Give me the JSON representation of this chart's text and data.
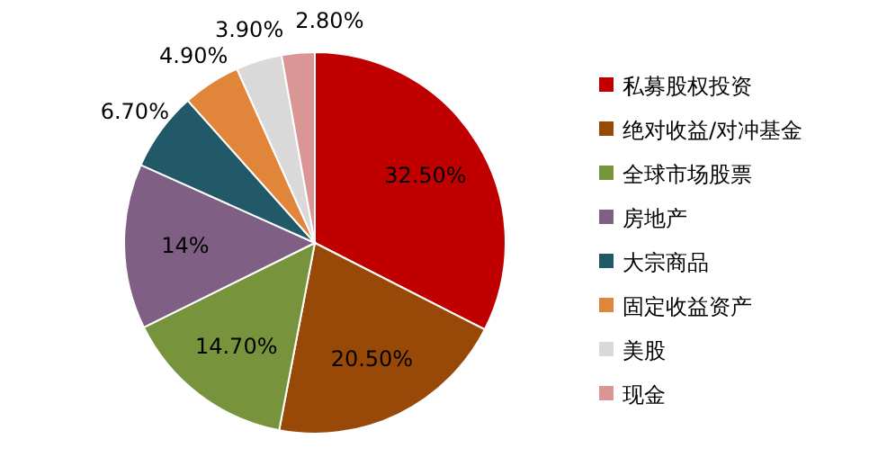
{
  "chart_data": {
    "type": "pie",
    "categories": [
      "私募股权投资",
      "绝对收益/对冲基金",
      "全球市场股票",
      "房地产",
      "大宗商品",
      "固定收益资产",
      "美股",
      "现金"
    ],
    "values": [
      32.5,
      20.5,
      14.7,
      14,
      6.7,
      4.9,
      3.9,
      2.8
    ],
    "value_labels": [
      "32.50%",
      "20.50%",
      "14.70%",
      "14%",
      "6.70%",
      "4.90%",
      "3.90%",
      "2.80%"
    ],
    "colors": [
      "#c00000",
      "#984807",
      "#77933c",
      "#7f6084",
      "#215968",
      "#e0853a",
      "#d9d9d9",
      "#d99694"
    ],
    "legend": "right"
  }
}
